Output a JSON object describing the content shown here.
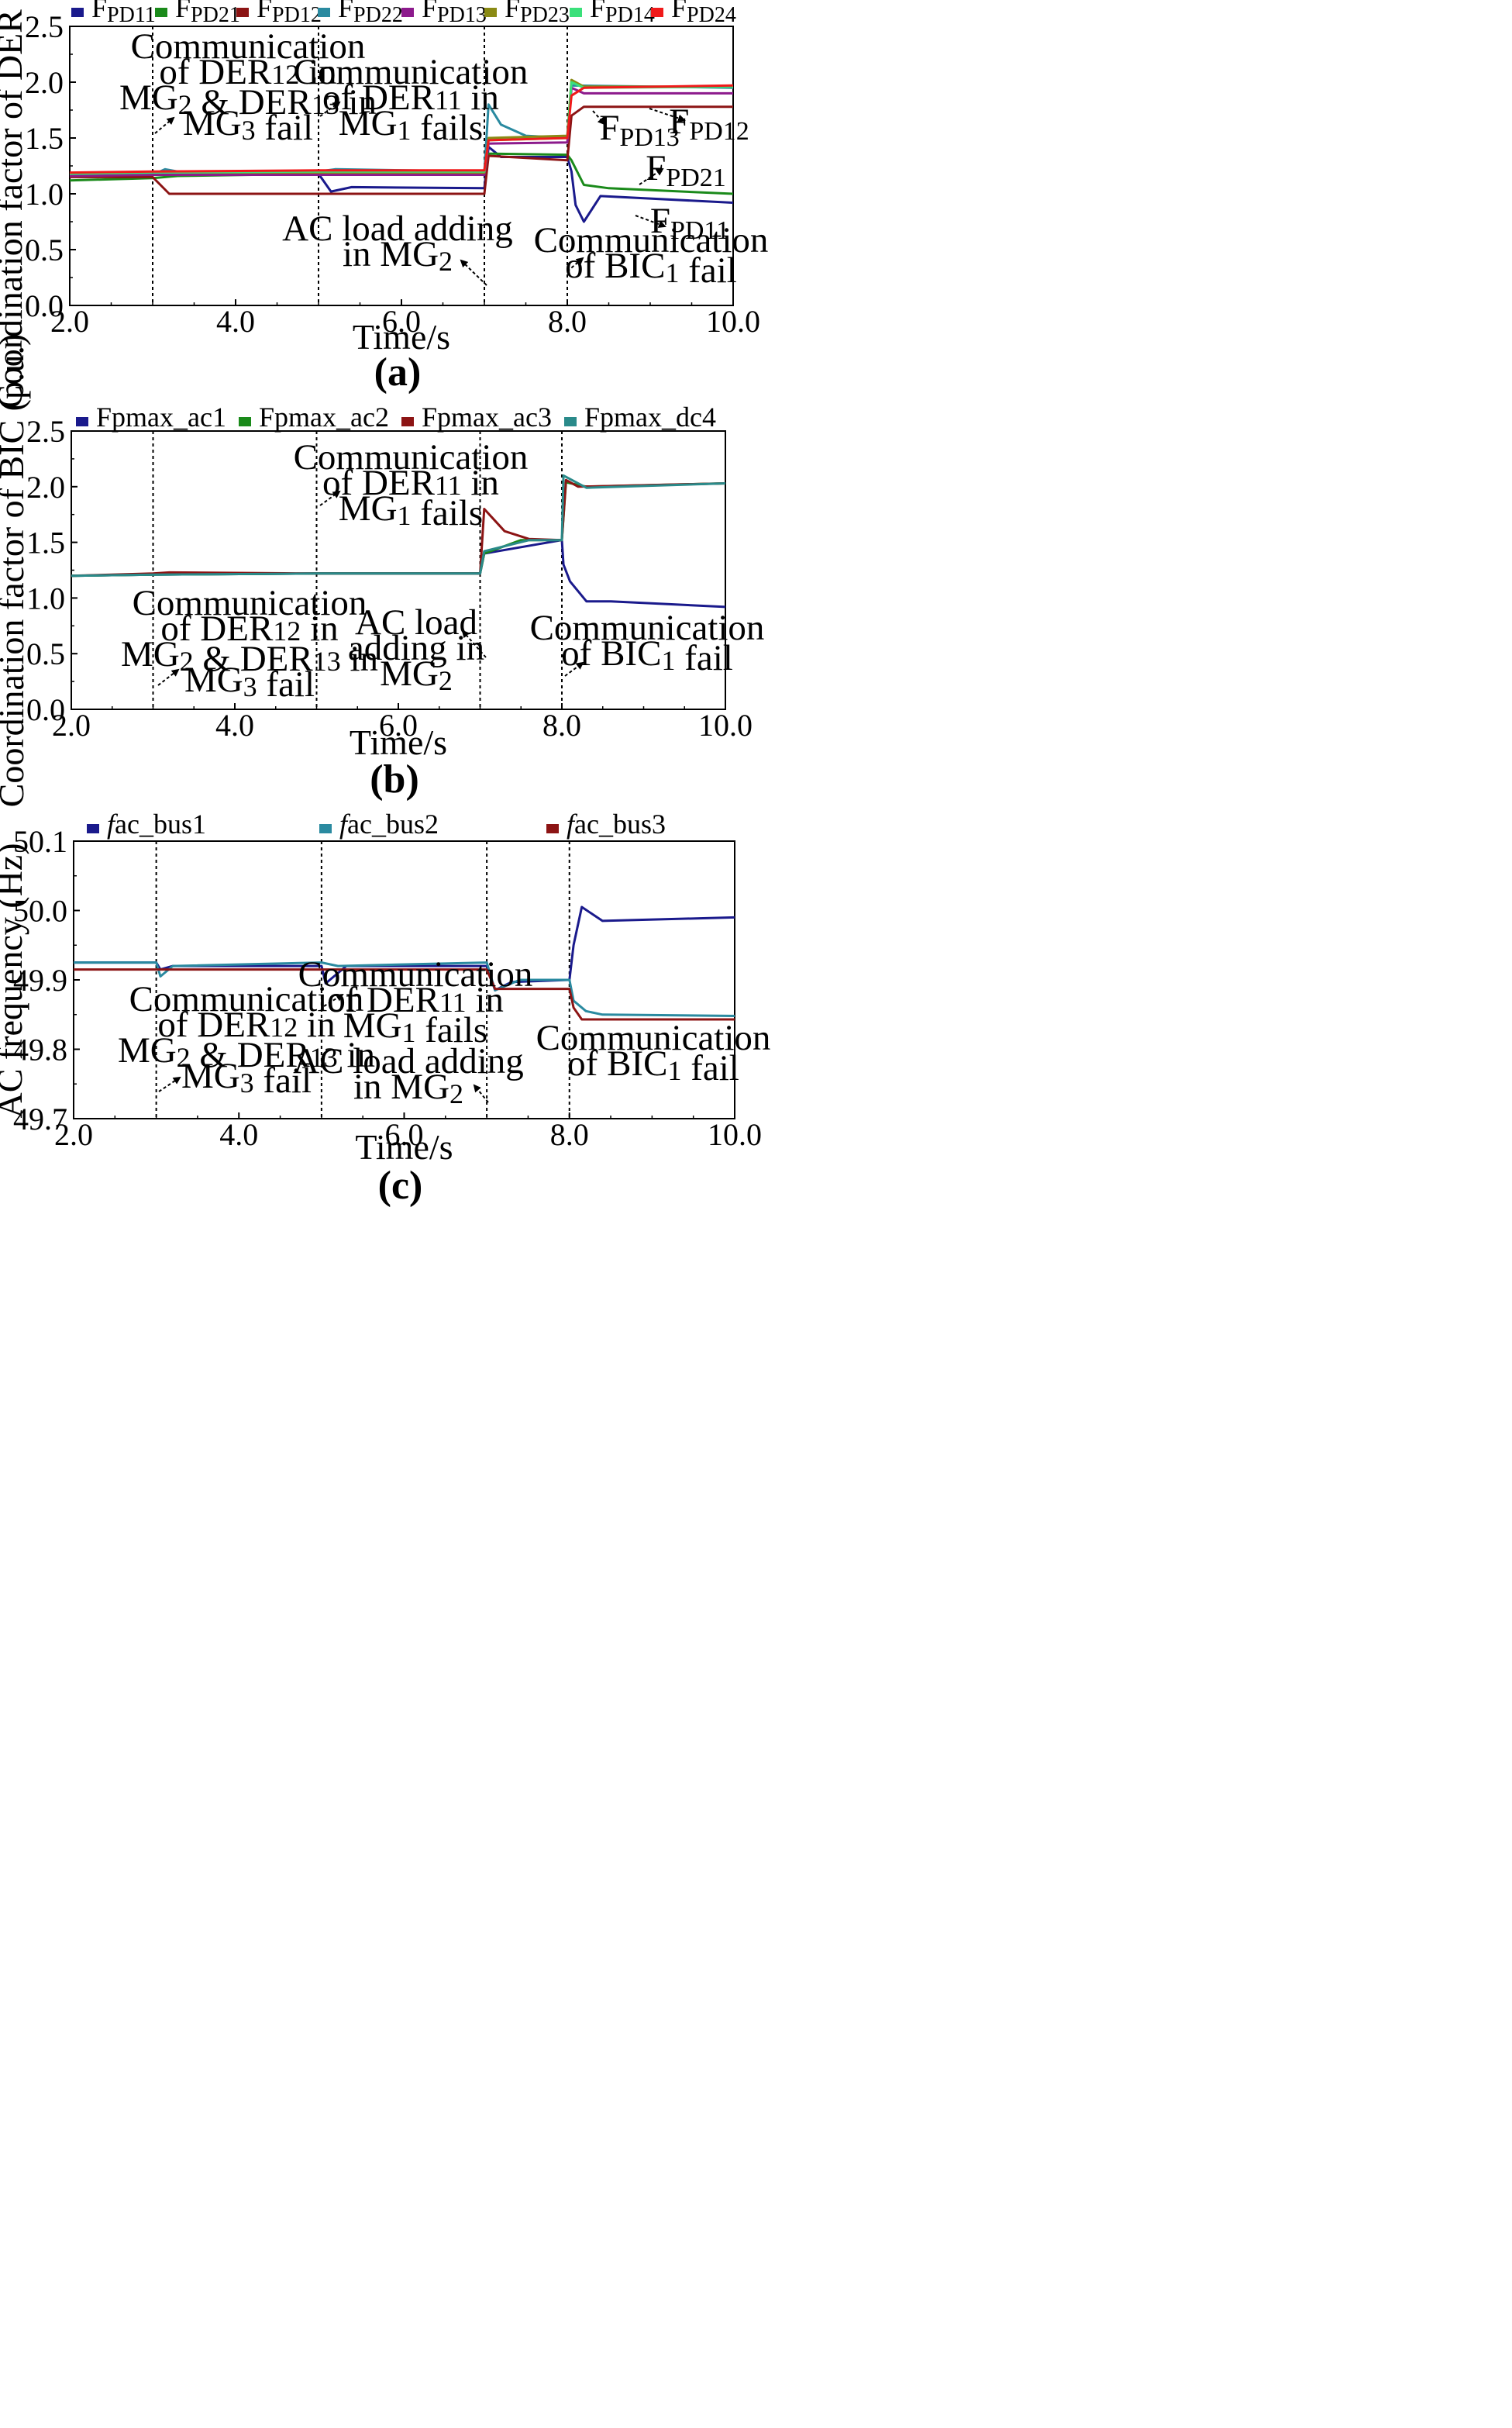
{
  "chart_data": [
    {
      "id": "a",
      "type": "line",
      "panel_label": "(a)",
      "xlabel": "Time/s",
      "ylabel": "Coordination factor of DER (p.u.)",
      "xlim": [
        2.0,
        10.0
      ],
      "ylim": [
        0.0,
        2.5
      ],
      "x_ticks": [
        "2.0",
        "4.0",
        "6.0",
        "8.0",
        "10.0"
      ],
      "y_ticks": [
        "0.0",
        "0.5",
        "1.0",
        "1.5",
        "2.0",
        "2.5"
      ],
      "event_lines": [
        3.0,
        5.0,
        7.0,
        8.0
      ],
      "series": [
        {
          "name": "FPD11",
          "base": "F",
          "sub": "PD11",
          "color": "#1a1a8c",
          "x": [
            2.0,
            3.0,
            5.0,
            5.15,
            5.4,
            7.0,
            7.05,
            7.2,
            8.0,
            8.05,
            8.1,
            8.2,
            8.4,
            10.0
          ],
          "y": [
            1.18,
            1.18,
            1.18,
            1.02,
            1.06,
            1.05,
            1.42,
            1.33,
            1.33,
            1.2,
            0.9,
            0.75,
            0.98,
            0.92
          ]
        },
        {
          "name": "FPD21",
          "base": "F",
          "sub": "PD21",
          "color": "#1a8a1a",
          "x": [
            2.0,
            3.0,
            3.3,
            5.0,
            7.0,
            7.05,
            8.0,
            8.05,
            8.2,
            8.5,
            10.0
          ],
          "y": [
            1.12,
            1.14,
            1.16,
            1.18,
            1.18,
            1.36,
            1.35,
            1.3,
            1.08,
            1.05,
            1.0
          ]
        },
        {
          "name": "FPD12",
          "base": "F",
          "sub": "PD12",
          "color": "#8c1414",
          "x": [
            2.0,
            3.0,
            3.2,
            5.0,
            7.0,
            7.05,
            8.0,
            8.05,
            8.2,
            10.0
          ],
          "y": [
            1.15,
            1.15,
            1.0,
            1.0,
            1.0,
            1.34,
            1.3,
            1.7,
            1.78,
            1.78
          ]
        },
        {
          "name": "FPD22",
          "base": "F",
          "sub": "PD22",
          "color": "#2a8aa0",
          "x": [
            2.0,
            3.0,
            3.15,
            3.3,
            5.0,
            5.2,
            7.0,
            7.05,
            7.2,
            7.5,
            8.0,
            8.05,
            10.0
          ],
          "y": [
            1.17,
            1.17,
            1.22,
            1.2,
            1.2,
            1.22,
            1.2,
            1.8,
            1.62,
            1.52,
            1.5,
            1.97,
            1.95
          ]
        },
        {
          "name": "FPD13",
          "base": "F",
          "sub": "PD13",
          "color": "#8c1a8c",
          "x": [
            2.0,
            3.0,
            5.0,
            7.0,
            7.05,
            8.0,
            8.05,
            8.2,
            10.0
          ],
          "y": [
            1.16,
            1.17,
            1.17,
            1.17,
            1.45,
            1.46,
            1.95,
            1.9,
            1.9
          ]
        },
        {
          "name": "FPD23",
          "base": "F",
          "sub": "PD23",
          "color": "#8a8a14",
          "x": [
            2.0,
            3.0,
            5.0,
            7.0,
            7.05,
            8.0,
            8.05,
            8.2,
            10.0
          ],
          "y": [
            1.18,
            1.19,
            1.19,
            1.19,
            1.5,
            1.52,
            2.02,
            1.96,
            1.96
          ]
        },
        {
          "name": "FPD14",
          "base": "F",
          "sub": "PD14",
          "color": "#3ae07a",
          "x": [
            2.0,
            3.0,
            5.0,
            7.0,
            7.05,
            8.0,
            8.05,
            8.2,
            10.0
          ],
          "y": [
            1.18,
            1.19,
            1.2,
            1.2,
            1.48,
            1.5,
            2.0,
            1.95,
            1.96
          ]
        },
        {
          "name": "FPD24",
          "base": "F",
          "sub": "PD24",
          "color": "#f01a1a",
          "x": [
            2.0,
            3.0,
            5.0,
            7.0,
            7.05,
            8.0,
            8.05,
            8.2,
            10.0
          ],
          "y": [
            1.19,
            1.2,
            1.21,
            1.21,
            1.48,
            1.5,
            1.88,
            1.95,
            1.97
          ]
        }
      ],
      "annotations": [
        {
          "lines": [
            "Communication",
            "of DER12 in",
            "MG2 & DER13 in",
            "MG3 fail"
          ]
        },
        {
          "lines": [
            "Communication",
            "of DER11 in",
            "MG1 fails"
          ]
        },
        {
          "lines": [
            "AC load adding",
            "in MG2"
          ]
        },
        {
          "lines": [
            "Communication",
            "of BIC1 fail"
          ]
        },
        {
          "lines": [
            "FPD13"
          ]
        },
        {
          "lines": [
            "FPD12"
          ]
        },
        {
          "lines": [
            "FPD21"
          ]
        },
        {
          "lines": [
            "FPD11"
          ]
        }
      ]
    },
    {
      "id": "b",
      "type": "line",
      "panel_label": "(b)",
      "xlabel": "Time/s",
      "ylabel": "Coordination factor of BIC (p.u.)",
      "xlim": [
        2.0,
        10.0
      ],
      "ylim": [
        0.0,
        2.5
      ],
      "x_ticks": [
        "2.0",
        "4.0",
        "6.0",
        "8.0",
        "10.0"
      ],
      "y_ticks": [
        "0.0",
        "0.5",
        "1.0",
        "1.5",
        "2.0",
        "2.5"
      ],
      "event_lines": [
        3.0,
        5.0,
        7.0,
        8.0
      ],
      "series": [
        {
          "name": "Fpmax_ac1",
          "base": "Fpmax_ac1",
          "sub": "",
          "color": "#1a1a8c",
          "x": [
            2.0,
            3.0,
            5.0,
            7.0,
            7.05,
            8.0,
            8.02,
            8.1,
            8.3,
            8.6,
            10.0
          ],
          "y": [
            1.2,
            1.21,
            1.22,
            1.22,
            1.4,
            1.52,
            1.3,
            1.15,
            0.97,
            0.97,
            0.92
          ]
        },
        {
          "name": "Fpmax_ac2",
          "base": "Fpmax_ac2",
          "sub": "",
          "color": "#1a8a1a",
          "x": [
            2.0,
            3.0,
            5.0,
            7.0,
            7.05,
            7.5,
            8.0,
            8.05,
            8.3,
            10.0
          ],
          "y": [
            1.2,
            1.21,
            1.22,
            1.22,
            1.4,
            1.52,
            1.52,
            2.04,
            2.0,
            2.03
          ]
        },
        {
          "name": "Fpmax_ac3",
          "base": "Fpmax_ac3",
          "sub": "",
          "color": "#8c1414",
          "x": [
            2.0,
            3.0,
            3.2,
            5.0,
            7.0,
            7.05,
            7.3,
            7.6,
            8.0,
            8.05,
            8.2,
            10.0
          ],
          "y": [
            1.2,
            1.22,
            1.23,
            1.22,
            1.22,
            1.8,
            1.6,
            1.53,
            1.52,
            2.06,
            2.0,
            2.03
          ]
        },
        {
          "name": "Fpmax_dc4",
          "base": "Fpmax_dc4",
          "sub": "",
          "color": "#2a8a8a",
          "x": [
            2.0,
            3.0,
            5.0,
            7.0,
            7.05,
            7.6,
            8.0,
            8.02,
            8.3,
            10.0
          ],
          "y": [
            1.2,
            1.21,
            1.22,
            1.22,
            1.42,
            1.52,
            1.52,
            2.1,
            1.99,
            2.03
          ]
        }
      ],
      "annotations": [
        {
          "lines": [
            "Communication",
            "of DER11 in",
            "MG1 fails"
          ]
        },
        {
          "lines": [
            "Communication",
            "of DER12 in",
            "MG2 & DER13 in",
            "MG3 fail"
          ]
        },
        {
          "lines": [
            "AC load",
            "adding in",
            "MG2"
          ]
        },
        {
          "lines": [
            "Communication",
            "of BIC1 fail"
          ]
        }
      ]
    },
    {
      "id": "c",
      "type": "line",
      "panel_label": "(c)",
      "xlabel": "Time/s",
      "ylabel": "AC frequency (Hz)",
      "xlim": [
        2.0,
        10.0
      ],
      "ylim": [
        49.7,
        50.1
      ],
      "x_ticks": [
        "2.0",
        "4.0",
        "6.0",
        "8.0",
        "10.0"
      ],
      "y_ticks": [
        "49.7",
        "49.8",
        "49.9",
        "50.0",
        "50.1"
      ],
      "event_lines": [
        3.0,
        5.0,
        7.0,
        8.0
      ],
      "series": [
        {
          "name": "fac_bus1",
          "base": "f",
          "sub": "ac_bus1",
          "color": "#1a1a8c",
          "x": [
            2.0,
            3.0,
            3.05,
            3.2,
            5.0,
            5.05,
            5.3,
            7.0,
            7.1,
            7.3,
            8.0,
            8.05,
            8.15,
            8.4,
            10.0
          ],
          "y": [
            49.925,
            49.925,
            49.915,
            49.92,
            49.92,
            49.895,
            49.92,
            49.92,
            49.885,
            49.897,
            49.9,
            49.95,
            50.005,
            49.985,
            49.99
          ]
        },
        {
          "name": "fac_bus2",
          "base": "f",
          "sub": "ac_bus2",
          "color": "#2a8aa0",
          "x": [
            2.0,
            3.0,
            3.05,
            3.2,
            5.0,
            5.2,
            7.0,
            7.1,
            7.4,
            8.0,
            8.05,
            8.2,
            8.4,
            10.0
          ],
          "y": [
            49.925,
            49.925,
            49.905,
            49.92,
            49.925,
            49.92,
            49.925,
            49.885,
            49.9,
            49.9,
            49.87,
            49.855,
            49.85,
            49.848
          ]
        },
        {
          "name": "fac_bus3",
          "base": "f",
          "sub": "ac_bus3",
          "color": "#8c1414",
          "x": [
            2.0,
            3.0,
            5.0,
            7.0,
            7.1,
            8.0,
            8.05,
            8.15,
            10.0
          ],
          "y": [
            49.915,
            49.915,
            49.915,
            49.915,
            49.887,
            49.887,
            49.86,
            49.843,
            49.843
          ]
        }
      ],
      "annotations": [
        {
          "lines": [
            "Communication",
            "of DER12 in",
            "MG2 & DER13 in",
            "MG3 fail"
          ]
        },
        {
          "lines": [
            "Communication",
            "of DER11 in",
            "MG1 fails"
          ]
        },
        {
          "lines": [
            "AC load adding",
            "in MG2"
          ]
        },
        {
          "lines": [
            "Communication",
            "of BIC1 fail"
          ]
        }
      ]
    }
  ]
}
